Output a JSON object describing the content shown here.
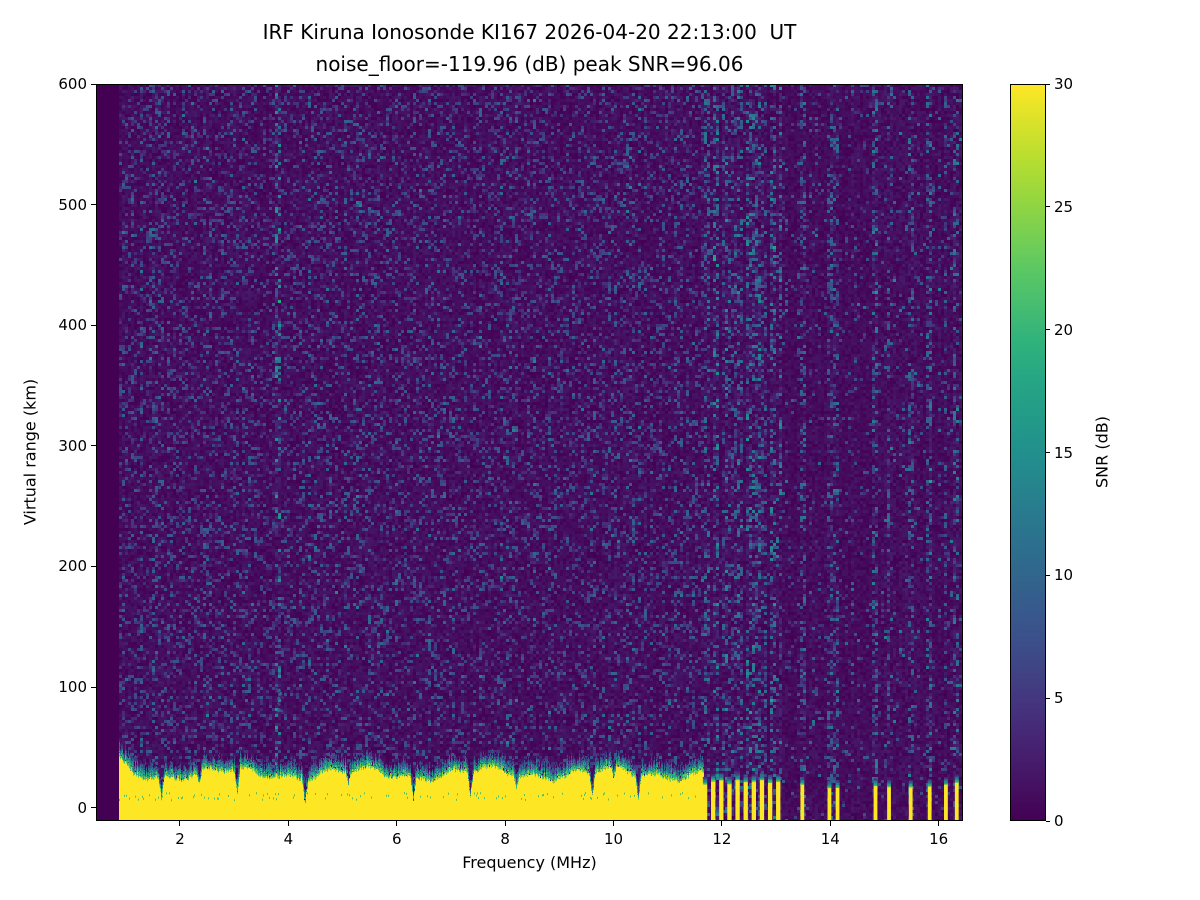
{
  "chart_data": {
    "type": "heatmap",
    "title": "IRF Kiruna Ionosonde KI167 2026-04-20 22:13:00  UT",
    "subtitle": "noise_floor=-119.96 (dB) peak SNR=96.06",
    "station": "KI167",
    "datetime_ut": "2026-04-20 22:13:00",
    "noise_floor_db": -119.96,
    "peak_snr_db": 96.06,
    "xlabel": "Frequency (MHz)",
    "ylabel": "Virtual range (km)",
    "colorbar_label": "SNR (dB)",
    "colormap": "viridis",
    "x_range_mhz": [
      0.45,
      16.45
    ],
    "y_range_km": [
      -11,
      600
    ],
    "snr_range_db": [
      0,
      30
    ],
    "x_ticks": [
      2,
      4,
      6,
      8,
      10,
      12,
      14,
      16
    ],
    "y_ticks": [
      0,
      100,
      200,
      300,
      400,
      500,
      600
    ],
    "colorbar_ticks": [
      0,
      5,
      10,
      15,
      20,
      25,
      30
    ],
    "features": {
      "data_start_mhz": 0.88,
      "background_mean_snr_db": 1.2,
      "speckle_snr_max_db": 9,
      "ground_echo_band": {
        "freq_start_mhz": 0.88,
        "freq_end_mhz": 11.65,
        "top_km_mean": 27,
        "snr_db": 30
      },
      "band_notches_mhz": [
        1.65,
        3.05,
        4.3,
        6.3,
        7.35,
        9.6,
        10.45
      ],
      "minor_notches_mhz": [
        2.35,
        5.1,
        8.2,
        10.0
      ],
      "comb_bars": {
        "freq_start_mhz": 11.65,
        "freq_end_mhz": 13.05,
        "spacing_mhz": 0.15,
        "width_mhz": 0.08,
        "top_km": 21
      },
      "sparse_bars_mhz": [
        13.45,
        13.95,
        14.1,
        14.8,
        15.05,
        15.45,
        15.8,
        16.1,
        16.3
      ],
      "sparse_bar_width_mhz": 0.07,
      "sparse_bar_top_km": 19,
      "enhanced_noise_columns_mhz": [
        3.8
      ]
    }
  }
}
